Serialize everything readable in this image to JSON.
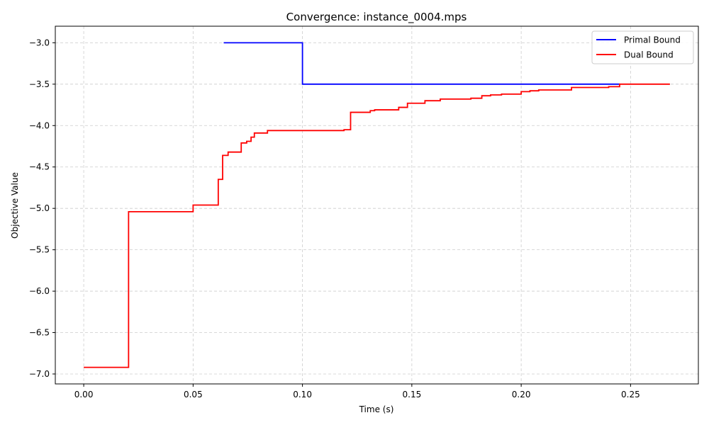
{
  "chart_data": {
    "type": "line",
    "title": "Convergence: instance_0004.mps",
    "xlabel": "Time (s)",
    "ylabel": "Objective Value",
    "xlim": [
      -0.013,
      0.281
    ],
    "ylim": [
      -7.12,
      -2.8
    ],
    "xticks": [
      0.0,
      0.05,
      0.1,
      0.15,
      0.2,
      0.25
    ],
    "xtick_labels": [
      "0.00",
      "0.05",
      "0.10",
      "0.15",
      "0.20",
      "0.25"
    ],
    "yticks": [
      -3.0,
      -3.5,
      -4.0,
      -4.5,
      -5.0,
      -5.5,
      -6.0,
      -6.5,
      -7.0
    ],
    "ytick_labels": [
      "−3.0",
      "−3.5",
      "−4.0",
      "−4.5",
      "−5.0",
      "−5.5",
      "−6.0",
      "−6.5",
      "−7.0"
    ],
    "grid": true,
    "legend_position": "top-right",
    "step": "post",
    "series": [
      {
        "name": "Primal Bound",
        "color": "#0000ff",
        "x": [
          0.064,
          0.1,
          0.245
        ],
        "y": [
          -3.0,
          -3.5,
          -3.5
        ]
      },
      {
        "name": "Dual Bound",
        "color": "#ff0000",
        "x": [
          0.0,
          0.0205,
          0.05,
          0.0615,
          0.0635,
          0.066,
          0.072,
          0.0745,
          0.0765,
          0.078,
          0.084,
          0.119,
          0.122,
          0.131,
          0.133,
          0.144,
          0.148,
          0.156,
          0.163,
          0.177,
          0.182,
          0.186,
          0.191,
          0.2,
          0.204,
          0.208,
          0.223,
          0.24,
          0.245,
          0.268
        ],
        "y": [
          -6.92,
          -5.04,
          -4.96,
          -4.65,
          -4.36,
          -4.32,
          -4.21,
          -4.19,
          -4.14,
          -4.09,
          -4.06,
          -4.05,
          -3.84,
          -3.82,
          -3.81,
          -3.78,
          -3.73,
          -3.7,
          -3.68,
          -3.67,
          -3.64,
          -3.63,
          -3.62,
          -3.59,
          -3.58,
          -3.57,
          -3.54,
          -3.53,
          -3.5,
          -3.5
        ]
      }
    ]
  }
}
